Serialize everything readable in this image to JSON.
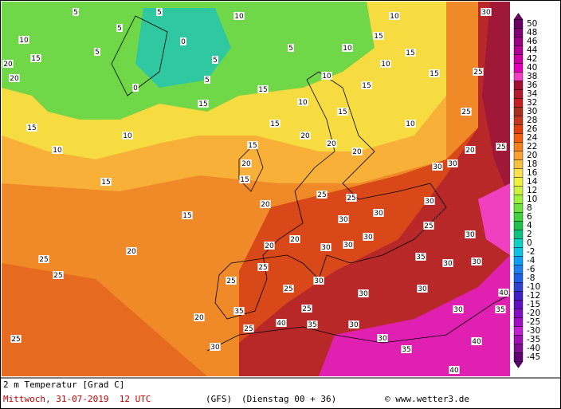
{
  "map": {
    "isotherm_labels": [
      10,
      15,
      20,
      20,
      15,
      10,
      15,
      15,
      20,
      25,
      25,
      25,
      20,
      30,
      25,
      35,
      25,
      40,
      35,
      25,
      25,
      30,
      25,
      20,
      20,
      30,
      30,
      30,
      30,
      25,
      25,
      30,
      30,
      25,
      30,
      30,
      30,
      35,
      30,
      30,
      30,
      35,
      40,
      40,
      35,
      40,
      30,
      30,
      20,
      15,
      15,
      20,
      20,
      20,
      15,
      10,
      15,
      15,
      10,
      25,
      25,
      30,
      20,
      30,
      30,
      25,
      20,
      15,
      10,
      5,
      0,
      0,
      5,
      15,
      10,
      10,
      10,
      15,
      10,
      5,
      5,
      5,
      5,
      5,
      10,
      15,
      15
    ],
    "legend": {
      "levels": [
        50,
        48,
        46,
        44,
        42,
        40,
        38,
        36,
        34,
        32,
        30,
        28,
        26,
        24,
        22,
        20,
        18,
        16,
        14,
        12,
        10,
        8,
        6,
        4,
        2,
        0,
        -2,
        -4,
        -6,
        -8,
        -10,
        -12,
        -15,
        -20,
        -25,
        -30,
        -35,
        -40,
        -45
      ],
      "colors": [
        "#6a0060",
        "#800070",
        "#990080",
        "#b0008f",
        "#c800a0",
        "#e000b8",
        "#f040c0",
        "#a01030",
        "#b01830",
        "#c02020",
        "#a83020",
        "#c03820",
        "#e04010",
        "#f06010",
        "#f08020",
        "#f8a030",
        "#f8c040",
        "#fde050",
        "#f0f040",
        "#d0f040",
        "#a0f040",
        "#70e040",
        "#40d040",
        "#20c050",
        "#10c080",
        "#10d0c0",
        "#10c0e0",
        "#10a0f0",
        "#2080f0",
        "#2060e0",
        "#3040d0",
        "#4020c0",
        "#6010c0",
        "#8010c0",
        "#a010c0",
        "#c020d0",
        "#a010b0",
        "#801090",
        "#600070"
      ]
    }
  },
  "footer": {
    "parameter": "2 m Temperatur [Grad C]",
    "valid_time": "Mittwoch, 31-07-2019  12 UTC",
    "model": "(GFS)",
    "run": "(Dienstag 00 + 36)",
    "copyright": "© www.wetter3.de"
  }
}
